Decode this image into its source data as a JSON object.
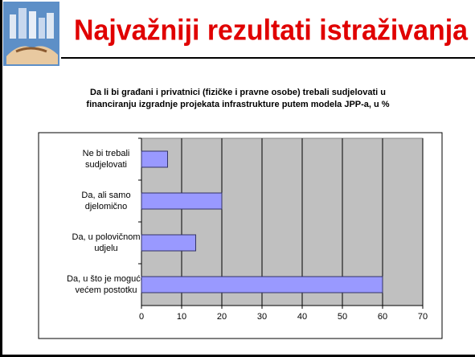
{
  "header": {
    "title": "Najvažniji rezultati istraživanja"
  },
  "chart_data": {
    "type": "bar",
    "orientation": "horizontal",
    "title": [
      "Da li bi građani i privatnici (fizičke i pravne osobe) trebali sudjelovati u",
      "financiranju izgradnje projekata infrastrukture putem modela JPP-a, u %"
    ],
    "categories": [
      [
        "Ne bi trebali",
        "sudjelovati"
      ],
      [
        "Da, ali samo",
        "djelomično"
      ],
      [
        "Da, u polovičnom",
        "udjelu"
      ],
      [
        "Da, u što je moguće",
        "većem postotku"
      ]
    ],
    "values": [
      6.5,
      20,
      13.5,
      60
    ],
    "color": "#9999ff",
    "xlim": [
      0,
      70
    ],
    "xticks": [
      0,
      10,
      20,
      30,
      40,
      50,
      60,
      70
    ],
    "grid": true
  }
}
